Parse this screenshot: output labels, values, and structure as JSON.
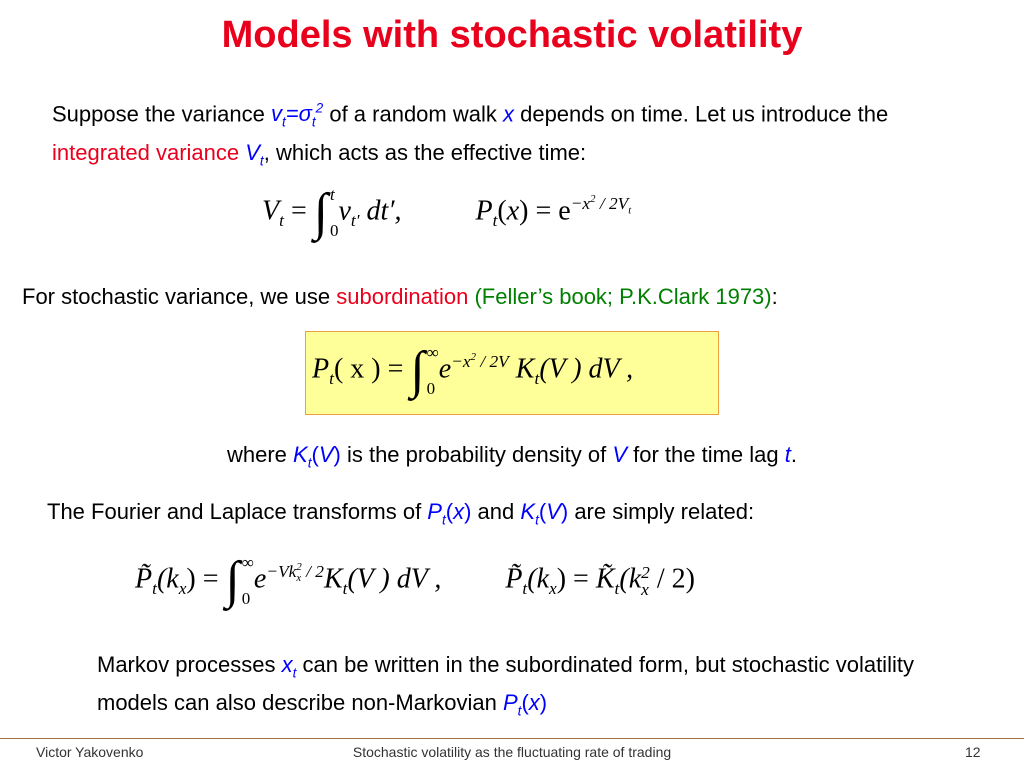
{
  "title": "Models with stochastic volatility",
  "intro": [
    "Suppose the variance ",
    "v",
    "t",
    "=σ",
    "t",
    "2",
    " of a random walk ",
    "x",
    " depends on time.  Let us introduce the ",
    "integrated variance",
    " V",
    "t",
    ", which acts as the effective time:"
  ],
  "eq1": {
    "lhs": [
      "V",
      "t",
      " = ",
      "∫",
      "t",
      "0",
      "v",
      "t′",
      " dt′,"
    ],
    "rhs": [
      "P",
      "t",
      "(",
      "x",
      ") = e",
      "−x",
      "2",
      " / 2V",
      "t"
    ]
  },
  "feller": [
    "For stochastic variance, we use ",
    "subordination",
    " (Feller’s book; P.K.Clark 1973)",
    ":"
  ],
  "eq2": [
    "P",
    "t",
    "( x ) = ",
    "∫",
    "∞",
    "0",
    "e",
    "−x",
    "2",
    " / 2V",
    "K",
    "t",
    "(V ) dV ,"
  ],
  "where": [
    "where ",
    "K",
    "t",
    "(",
    "V",
    ")",
    " is the probability density of ",
    "V",
    " for the time lag ",
    "t",
    "."
  ],
  "fourier": [
    "The Fourier and Laplace transforms of ",
    "P",
    "t",
    "(",
    "x",
    ")",
    " and ",
    "K",
    "t",
    "(",
    "V",
    ")",
    " are simply related:"
  ],
  "eq3": {
    "lhs": [
      "P̃",
      "t",
      "(k",
      "x",
      ") = ",
      "∫",
      "∞",
      "0",
      "e",
      "−Vk",
      "2",
      "x",
      " / 2",
      "K",
      "t",
      "(V ) dV ,"
    ],
    "rhs": [
      "P̃",
      "t",
      "(k",
      "x",
      ") = ",
      "K̃",
      "t",
      "(k",
      "2",
      "x",
      " / 2)"
    ]
  },
  "markov": [
    "Markov processes ",
    "x",
    "t",
    " can be written in the subordinated form, but stochastic volatility models can also describe non-Markovian ",
    "P",
    "t",
    "(",
    "x",
    ")"
  ],
  "footer": {
    "author": "Victor Yakovenko",
    "title": "Stochastic volatility as the fluctuating rate of trading",
    "page": "12"
  }
}
